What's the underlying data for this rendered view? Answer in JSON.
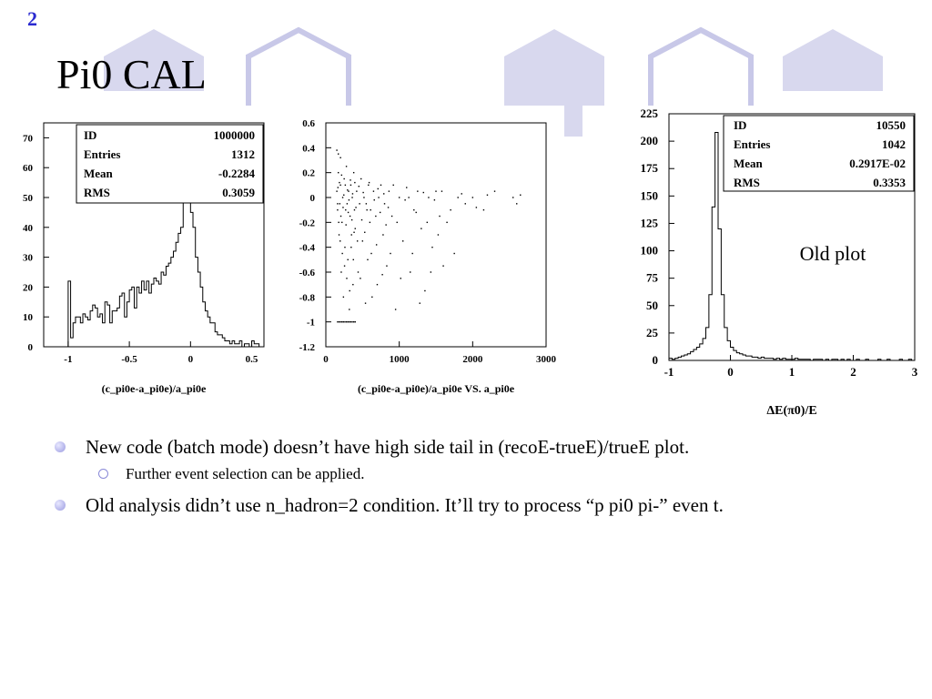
{
  "slide": {
    "number": "2",
    "title": "Pi0 CAL"
  },
  "colors": {
    "accent": "#2a2ad0",
    "decoration": "#d8d8ee",
    "decoration_outline": "#c8c8e8"
  },
  "chart_data": [
    {
      "type": "histogram",
      "xlabel": "(c_pi0e-a_pi0e)/a_pi0e",
      "xlim": [
        -1.2,
        0.6
      ],
      "ylim": [
        0,
        75
      ],
      "xticks": [
        "-1",
        "-0.5",
        "0",
        "0.5"
      ],
      "xtick_values": [
        -1,
        -0.5,
        0,
        0.5
      ],
      "yticks": [
        "0",
        "10",
        "20",
        "30",
        "40",
        "50",
        "60",
        "70"
      ],
      "ytick_values": [
        0,
        10,
        20,
        30,
        40,
        50,
        60,
        70
      ],
      "stats": [
        {
          "label": "ID",
          "value": "1000000"
        },
        {
          "label": "Entries",
          "value": "1312"
        },
        {
          "label": "Mean",
          "value": "-0.2284"
        },
        {
          "label": "RMS",
          "value": "0.3059"
        }
      ],
      "bins_start": -1.0,
      "bin_width": 0.02,
      "counts": [
        22,
        3,
        8,
        10,
        10,
        8,
        11,
        10,
        9,
        12,
        14,
        13,
        10,
        11,
        8,
        15,
        14,
        8,
        12,
        12,
        13,
        17,
        18,
        10,
        15,
        19,
        20,
        13,
        20,
        18,
        22,
        19,
        22,
        18,
        21,
        23,
        22,
        21,
        25,
        24,
        27,
        28,
        30,
        32,
        35,
        38,
        40,
        50,
        65,
        68,
        45,
        40,
        30,
        25,
        20,
        15,
        12,
        10,
        8,
        8,
        5,
        4,
        4,
        3,
        2,
        2,
        1,
        2,
        1,
        1,
        2,
        0,
        1,
        1,
        0,
        2,
        1,
        1,
        0,
        0
      ]
    },
    {
      "type": "scatter",
      "xlabel": "(c_pi0e-a_pi0e)/a_pi0e VS. a_pi0e",
      "xlim": [
        0,
        3000
      ],
      "ylim": [
        -1.2,
        0.6
      ],
      "xticks": [
        "0",
        "1000",
        "2000",
        "3000"
      ],
      "xtick_values": [
        0,
        1000,
        2000,
        3000
      ],
      "yticks": [
        "0.6",
        "0.4",
        "0.2",
        "0",
        "-0.2",
        "-0.4",
        "-0.6",
        "-0.8",
        "-1",
        "-1.2"
      ],
      "ytick_values": [
        0.6,
        0.4,
        0.2,
        0,
        -0.2,
        -0.4,
        -0.6,
        -0.8,
        -1,
        -1.2
      ],
      "points": [
        [
          150,
          0.05
        ],
        [
          160,
          -0.1
        ],
        [
          170,
          0.2
        ],
        [
          180,
          -0.3
        ],
        [
          190,
          -0.05
        ],
        [
          200,
          0.1
        ],
        [
          210,
          -0.6
        ],
        [
          220,
          -0.2
        ],
        [
          230,
          0.0
        ],
        [
          240,
          -0.8
        ],
        [
          250,
          0.15
        ],
        [
          260,
          -0.4
        ],
        [
          270,
          -0.1
        ],
        [
          280,
          0.25
        ],
        [
          290,
          -0.05
        ],
        [
          300,
          -0.5
        ],
        [
          310,
          0.05
        ],
        [
          320,
          -0.9
        ],
        [
          330,
          -0.15
        ],
        [
          340,
          0.1
        ],
        [
          350,
          -0.3
        ],
        [
          360,
          0.0
        ],
        [
          370,
          -0.7
        ],
        [
          380,
          0.2
        ],
        [
          390,
          -0.1
        ],
        [
          400,
          -0.25
        ],
        [
          420,
          0.05
        ],
        [
          440,
          -0.6
        ],
        [
          460,
          -0.05
        ],
        [
          480,
          0.15
        ],
        [
          500,
          -0.35
        ],
        [
          520,
          0.0
        ],
        [
          540,
          -0.85
        ],
        [
          560,
          -0.1
        ],
        [
          580,
          0.1
        ],
        [
          600,
          -0.2
        ],
        [
          620,
          -0.45
        ],
        [
          650,
          0.05
        ],
        [
          680,
          -0.15
        ],
        [
          700,
          -0.7
        ],
        [
          720,
          0.0
        ],
        [
          750,
          0.1
        ],
        [
          780,
          -0.3
        ],
        [
          800,
          -0.05
        ],
        [
          830,
          -0.55
        ],
        [
          860,
          0.05
        ],
        [
          900,
          -0.15
        ],
        [
          950,
          -0.9
        ],
        [
          1000,
          0.0
        ],
        [
          1050,
          -0.35
        ],
        [
          1100,
          0.08
        ],
        [
          1150,
          -0.6
        ],
        [
          1200,
          -0.1
        ],
        [
          1250,
          0.05
        ],
        [
          1300,
          -0.25
        ],
        [
          1350,
          -0.75
        ],
        [
          1400,
          0.0
        ],
        [
          1450,
          -0.4
        ],
        [
          1500,
          0.05
        ],
        [
          1550,
          -0.15
        ],
        [
          1600,
          -0.55
        ],
        [
          1700,
          -0.1
        ],
        [
          1800,
          0.0
        ],
        [
          1900,
          -0.05
        ],
        [
          2000,
          0.0
        ],
        [
          2150,
          -0.1
        ],
        [
          2300,
          0.05
        ],
        [
          2550,
          0.0
        ],
        [
          2600,
          -0.05
        ],
        [
          2650,
          0.02
        ],
        [
          160,
          -1.0
        ],
        [
          180,
          -1.0
        ],
        [
          200,
          -1.0
        ],
        [
          220,
          -1.0
        ],
        [
          240,
          -1.0
        ],
        [
          260,
          -1.0
        ],
        [
          280,
          -1.0
        ],
        [
          300,
          -1.0
        ],
        [
          320,
          -1.0
        ],
        [
          340,
          -1.0
        ],
        [
          360,
          -1.0
        ],
        [
          380,
          -1.0
        ],
        [
          400,
          -1.0
        ],
        [
          150,
          0.38
        ],
        [
          170,
          0.35
        ],
        [
          200,
          0.32
        ],
        [
          160,
          -0.05
        ],
        [
          165,
          0.08
        ],
        [
          175,
          -0.2
        ],
        [
          185,
          0.12
        ],
        [
          195,
          -0.35
        ],
        [
          205,
          -0.15
        ],
        [
          215,
          0.18
        ],
        [
          225,
          -0.45
        ],
        [
          235,
          -0.08
        ],
        [
          245,
          0.02
        ],
        [
          255,
          -0.55
        ],
        [
          265,
          0.1
        ],
        [
          275,
          -0.22
        ],
        [
          285,
          -0.65
        ],
        [
          295,
          0.06
        ],
        [
          305,
          -0.12
        ],
        [
          315,
          -0.02
        ],
        [
          325,
          -0.75
        ],
        [
          335,
          0.14
        ],
        [
          345,
          -0.4
        ],
        [
          355,
          -0.18
        ],
        [
          365,
          0.03
        ],
        [
          375,
          -0.5
        ],
        [
          385,
          -0.28
        ],
        [
          395,
          0.12
        ],
        [
          410,
          -0.08
        ],
        [
          430,
          -0.35
        ],
        [
          450,
          0.09
        ],
        [
          470,
          -0.65
        ],
        [
          490,
          -0.18
        ],
        [
          510,
          0.04
        ],
        [
          530,
          -0.28
        ],
        [
          550,
          -0.05
        ],
        [
          570,
          -0.5
        ],
        [
          590,
          0.12
        ],
        [
          610,
          -0.1
        ],
        [
          630,
          -0.8
        ],
        [
          660,
          -0.02
        ],
        [
          690,
          -0.38
        ],
        [
          710,
          0.07
        ],
        [
          740,
          -0.12
        ],
        [
          770,
          -0.62
        ],
        [
          790,
          0.03
        ],
        [
          820,
          -0.22
        ],
        [
          850,
          -0.08
        ],
        [
          880,
          -0.45
        ],
        [
          920,
          0.1
        ],
        [
          970,
          -0.2
        ],
        [
          1020,
          -0.65
        ],
        [
          1080,
          -0.02
        ],
        [
          1130,
          0.0
        ],
        [
          1180,
          -0.45
        ],
        [
          1230,
          -0.12
        ],
        [
          1280,
          -0.85
        ],
        [
          1330,
          0.04
        ],
        [
          1380,
          -0.2
        ],
        [
          1430,
          -0.6
        ],
        [
          1480,
          -0.02
        ],
        [
          1530,
          -0.3
        ],
        [
          1580,
          0.05
        ],
        [
          1650,
          -0.2
        ],
        [
          1750,
          -0.45
        ],
        [
          1850,
          0.03
        ],
        [
          2050,
          -0.08
        ],
        [
          2200,
          0.02
        ]
      ]
    },
    {
      "type": "histogram",
      "xlabel": "ΔE(π0)/E",
      "annotation": "Old plot",
      "xlim": [
        -1,
        3
      ],
      "ylim": [
        0,
        225
      ],
      "xticks": [
        "-1",
        "0",
        "1",
        "2",
        "3"
      ],
      "xtick_values": [
        -1,
        0,
        1,
        2,
        3
      ],
      "yticks": [
        "0",
        "25",
        "50",
        "75",
        "100",
        "125",
        "150",
        "175",
        "200",
        "225"
      ],
      "ytick_values": [
        0,
        25,
        50,
        75,
        100,
        125,
        150,
        175,
        200,
        225
      ],
      "stats": [
        {
          "label": "ID",
          "value": "10550"
        },
        {
          "label": "Entries",
          "value": "1042"
        },
        {
          "label": "Mean",
          "value": "0.2917E-02"
        },
        {
          "label": "RMS",
          "value": "0.3353"
        }
      ],
      "bins_start": -1.0,
      "bin_width": 0.05,
      "counts": [
        2,
        1,
        2,
        3,
        4,
        5,
        6,
        8,
        10,
        12,
        15,
        20,
        30,
        60,
        140,
        208,
        120,
        60,
        30,
        18,
        12,
        9,
        7,
        6,
        5,
        4,
        4,
        3,
        3,
        2,
        3,
        2,
        2,
        2,
        1,
        2,
        1,
        2,
        1,
        1,
        1,
        2,
        1,
        1,
        1,
        1,
        0,
        1,
        1,
        1,
        0,
        1,
        0,
        1,
        1,
        0,
        1,
        0,
        1,
        0,
        0,
        1,
        0,
        0,
        1,
        0,
        0,
        0,
        1,
        0,
        0,
        1,
        0,
        0,
        0,
        1,
        0,
        0,
        1,
        0
      ]
    }
  ],
  "bullets": [
    {
      "level": 1,
      "text": "New code (batch mode) doesn’t have high side tail in (recoE-trueE)/trueE plot."
    },
    {
      "level": 2,
      "text": "Further event selection can be applied."
    },
    {
      "level": 1,
      "text": "Old analysis didn’t use n_hadron=2 condition. It’ll try to process “p pi0 pi-” even t."
    }
  ]
}
